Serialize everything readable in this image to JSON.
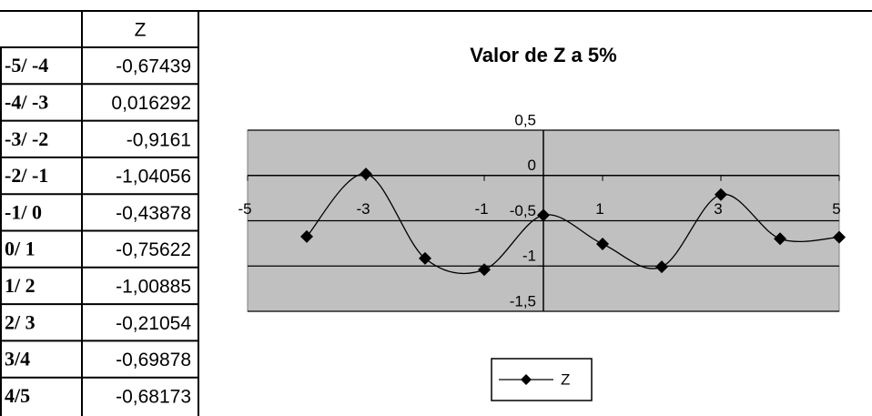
{
  "table": {
    "column_header": "Z",
    "rows": [
      [
        "-5/ -4",
        "-0,67439"
      ],
      [
        "-4/ -3",
        "0,016292"
      ],
      [
        "-3/ -2",
        "-0,9161"
      ],
      [
        "-2/ -1",
        "-1,04056"
      ],
      [
        "-1/ 0",
        "-0,43878"
      ],
      [
        "0/ 1",
        "-0,75622"
      ],
      [
        "1/ 2",
        "-1,00885"
      ],
      [
        "2/ 3",
        "-0,21054"
      ],
      [
        "3/4",
        "-0,69878"
      ],
      [
        "4/5",
        "-0,68173"
      ]
    ]
  },
  "chart_data": {
    "type": "line",
    "title": "Valor de Z a 5%",
    "x": [
      -4,
      -3,
      -2,
      -1,
      0,
      1,
      2,
      3,
      4,
      5
    ],
    "series": [
      {
        "name": "Z",
        "color": "#000000",
        "values": [
          -0.67439,
          0.016292,
          -0.9161,
          -1.04056,
          -0.43878,
          -0.75622,
          -1.00885,
          -0.21054,
          -0.69878,
          -0.68173
        ]
      }
    ],
    "xlim": [
      -5,
      5
    ],
    "xticks": [
      -5,
      -3,
      -1,
      1,
      3,
      5
    ],
    "ylim": [
      -1.5,
      0.5
    ],
    "yticks": [
      {
        "value": 0.5,
        "label": "0,5"
      },
      0,
      {
        "value": -0.5,
        "label": "-0,5"
      },
      -1,
      {
        "value": -1.5,
        "label": "-1,5"
      }
    ],
    "grid": true,
    "smooth": true,
    "legend": "bottom",
    "plot_background": "#c0c0c0"
  }
}
